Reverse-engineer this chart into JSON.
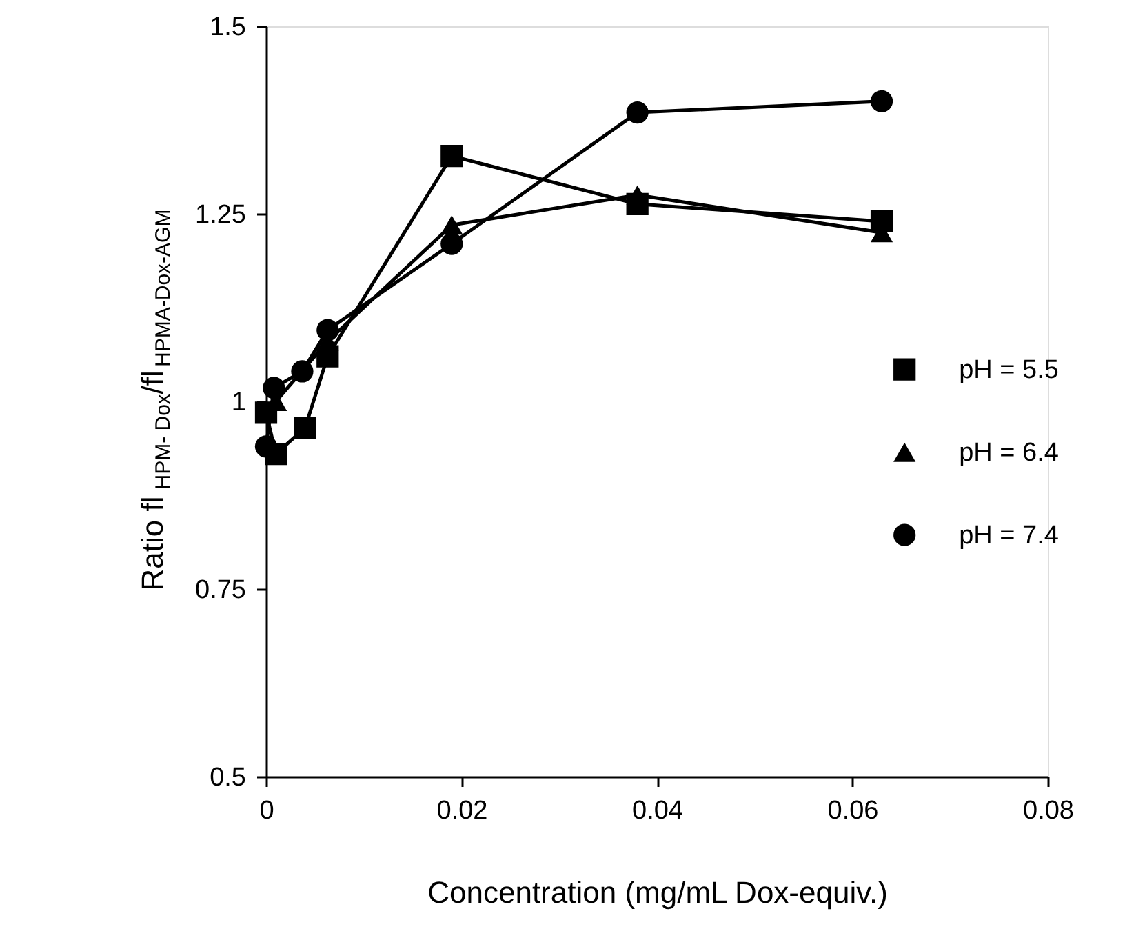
{
  "chart_data": {
    "type": "line",
    "xlabel": "Concentration  (mg/mL Dox-equiv.)",
    "ylabel": "Ratio fl$_{HPM- Dox}$/fl$_{HPMA-Dox-AGM}$",
    "xlim": [
      0,
      0.08
    ],
    "xticks": [
      0,
      0.02,
      0.04,
      0.06,
      0.08
    ],
    "ylim": [
      0.5,
      1.5
    ],
    "yticks": [
      0.5,
      0.75,
      1,
      1.25,
      1.5
    ],
    "grid": false,
    "legend": "right",
    "line_style": "solid",
    "series": [
      {
        "name": "pH = 5.5",
        "color": "#000000",
        "marker": "square",
        "x": [
          0,
          0.001,
          0.004,
          0.0063,
          0.019,
          0.038,
          0.063
        ],
        "values": [
          0.985,
          0.93,
          0.965,
          1.06,
          1.327,
          1.263,
          1.24
        ]
      },
      {
        "name": "pH = 6.4",
        "color": "#000000",
        "marker": "triangle",
        "x": [
          0.001,
          0.0063,
          0.019,
          0.038,
          0.063
        ],
        "values": [
          1.0,
          1.08,
          1.235,
          1.275,
          1.225
        ]
      },
      {
        "name": "pH = 7.4",
        "color": "#000000",
        "marker": "circle",
        "x": [
          0,
          0.0008,
          0.0037,
          0.0063,
          0.019,
          0.038,
          0.063
        ],
        "values": [
          0.94,
          1.018,
          1.04,
          1.095,
          1.21,
          1.385,
          1.4
        ]
      }
    ]
  }
}
